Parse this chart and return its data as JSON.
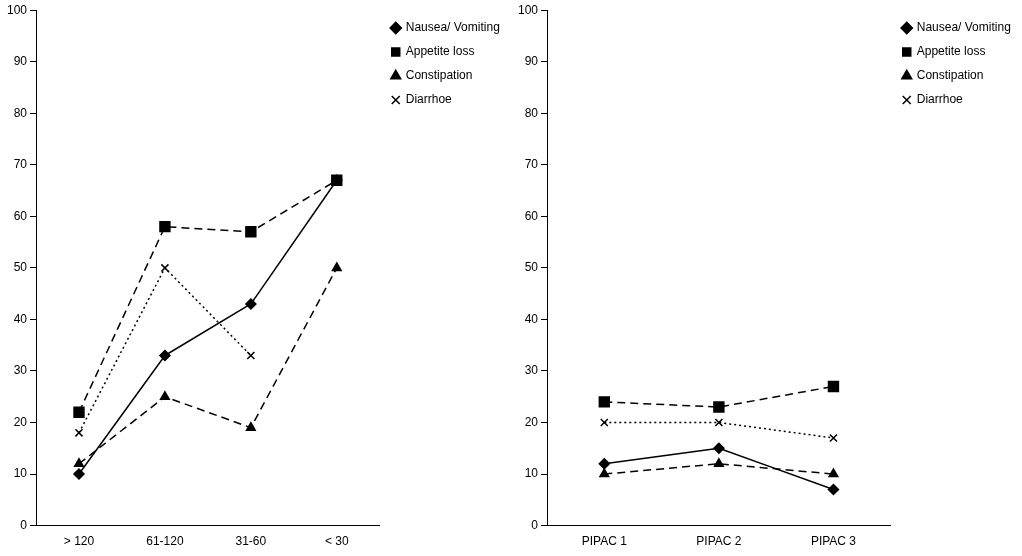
{
  "chart_data": [
    {
      "type": "line",
      "categories": [
        "> 120",
        "61-120",
        "31-60",
        "< 30"
      ],
      "ylim": [
        0,
        100
      ],
      "yticks": [
        0,
        10,
        20,
        30,
        40,
        50,
        60,
        70,
        80,
        90,
        100
      ],
      "grid": false,
      "legend": "top right",
      "series": [
        {
          "name": "Nausea/ Vomiting",
          "color": "#000000",
          "marker": "diamond",
          "line_style": "solid",
          "values": [
            10,
            33,
            43,
            67
          ]
        },
        {
          "name": "Appetite loss",
          "color": "#000000",
          "marker": "square",
          "line_style": "dashed",
          "values": [
            22,
            58,
            57,
            67
          ]
        },
        {
          "name": "Constipation",
          "color": "#000000",
          "marker": "triangle",
          "line_style": "dashed",
          "values": [
            12,
            25,
            19,
            50
          ]
        },
        {
          "name": "Diarrhoe",
          "color": "#000000",
          "marker": "cross",
          "line_style": "dotted",
          "values": [
            18,
            50,
            33,
            null
          ]
        }
      ]
    },
    {
      "type": "line",
      "categories": [
        "PIPAC 1",
        "PIPAC 2",
        "PIPAC 3"
      ],
      "ylim": [
        0,
        100
      ],
      "yticks": [
        0,
        10,
        20,
        30,
        40,
        50,
        60,
        70,
        80,
        90,
        100
      ],
      "grid": false,
      "legend": "top right",
      "series": [
        {
          "name": "Nausea/ Vomiting",
          "color": "#000000",
          "marker": "diamond",
          "line_style": "solid",
          "values": [
            12,
            15,
            7
          ]
        },
        {
          "name": "Appetite loss",
          "color": "#000000",
          "marker": "square",
          "line_style": "dashed",
          "values": [
            24,
            23,
            27
          ]
        },
        {
          "name": "Constipation",
          "color": "#000000",
          "marker": "triangle",
          "line_style": "dashed",
          "values": [
            10,
            12,
            10
          ]
        },
        {
          "name": "Diarrhoe",
          "color": "#000000",
          "marker": "cross",
          "line_style": "dotted",
          "values": [
            20,
            20,
            17
          ]
        }
      ]
    }
  ]
}
